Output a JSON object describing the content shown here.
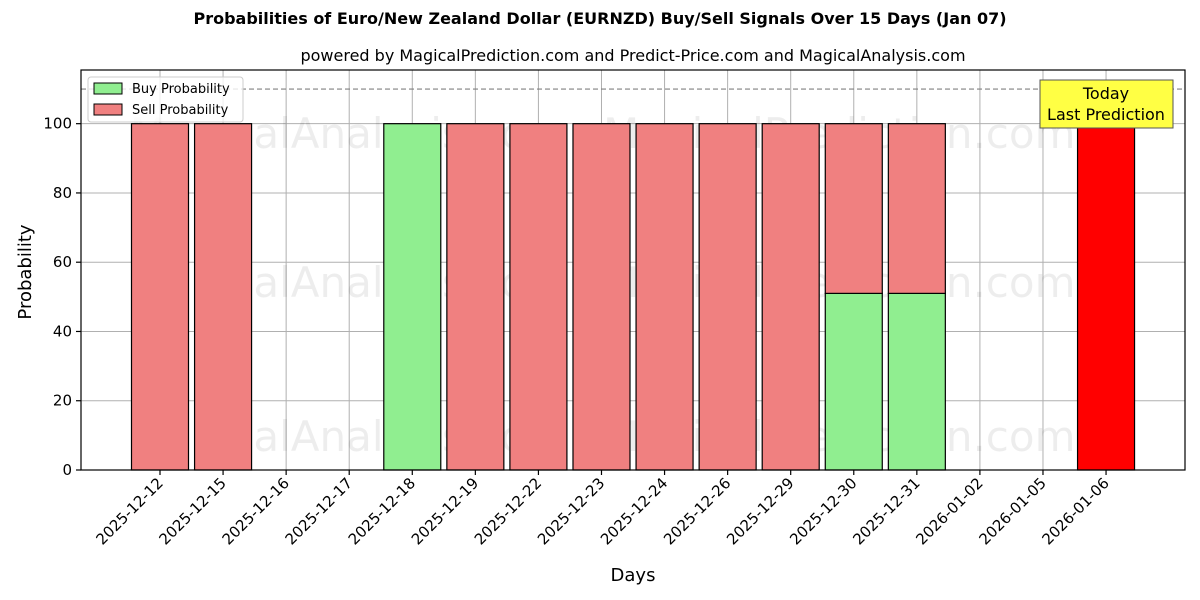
{
  "chart_data": {
    "type": "bar",
    "stacked": true,
    "title": "Probabilities of Euro/New Zealand Dollar (EURNZD) Buy/Sell Signals Over 15 Days (Jan 07)",
    "subtitle": "powered by MagicalPrediction.com and Predict-Price.com and MagicalAnalysis.com",
    "xlabel": "Days",
    "ylabel": "Probability",
    "ylim": [
      0,
      115.5
    ],
    "yticks": [
      0,
      20,
      40,
      60,
      80,
      100
    ],
    "grid": true,
    "legend_position": "upper left",
    "reference_line": {
      "y": 110,
      "style": "dashed",
      "color": "#808080"
    },
    "categories": [
      "2025-12-12",
      "2025-12-15",
      "2025-12-16",
      "2025-12-17",
      "2025-12-18",
      "2025-12-19",
      "2025-12-22",
      "2025-12-23",
      "2025-12-24",
      "2025-12-26",
      "2025-12-29",
      "2025-12-30",
      "2025-12-31",
      "2026-01-02",
      "2026-01-05",
      "2026-01-06"
    ],
    "series": [
      {
        "name": "Buy Probability",
        "color": "#90ee90",
        "values": [
          0,
          0,
          null,
          null,
          100,
          0,
          0,
          0,
          0,
          0,
          0,
          51,
          51,
          null,
          null,
          0
        ]
      },
      {
        "name": "Sell Probability",
        "color": "#f08080",
        "values": [
          100,
          100,
          null,
          null,
          0,
          100,
          100,
          100,
          100,
          100,
          100,
          49,
          49,
          null,
          null,
          100
        ]
      }
    ],
    "highlight": {
      "category": "2026-01-06",
      "color": "#ff0000",
      "note": "Last prediction bar drawn in red"
    },
    "annotation": {
      "text_line1": "Today",
      "text_line2": "Last Prediction",
      "background": "#ffff44"
    },
    "watermarks": [
      "MagicalAnalysis.com",
      "MagicalPrediction.com"
    ]
  },
  "header": {
    "title": "Probabilities of Euro/New Zealand Dollar (EURNZD) Buy/Sell Signals Over 15 Days (Jan 07)",
    "subtitle": "powered by MagicalPrediction.com and Predict-Price.com and MagicalAnalysis.com"
  },
  "legend": {
    "buy_label": "Buy Probability",
    "sell_label": "Sell Probability"
  },
  "axes": {
    "xlabel": "Days",
    "ylabel": "Probability"
  },
  "annotation": {
    "line1": "Today",
    "line2": "Last Prediction"
  },
  "colors": {
    "buy": "#90ee90",
    "sell": "#f08080",
    "today": "#ff0000",
    "annotation_bg": "#ffff44"
  }
}
